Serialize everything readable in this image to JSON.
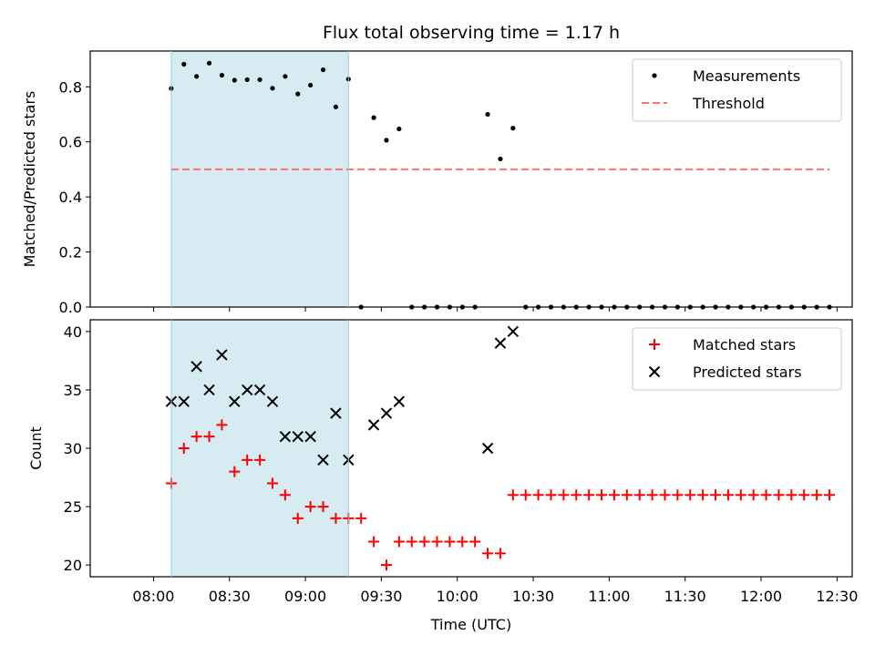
{
  "chart_data": [
    {
      "type": "scatter",
      "title": "Flux total observing time = 1.17 h",
      "xlabel": "",
      "ylabel": "Matched/Predicted stars",
      "ylim": [
        0,
        0.93
      ],
      "yticks": [
        "0.0",
        "0.2",
        "0.4",
        "0.6",
        "0.8"
      ],
      "highlight_span": {
        "start": "08:07",
        "end": "09:17",
        "color": "#add8e6"
      },
      "grid": false,
      "legend_position": "top-right",
      "series": [
        {
          "name": "Measurements",
          "kind": "points",
          "color": "#000000",
          "x": [
            "08:07",
            "08:12",
            "08:17",
            "08:22",
            "08:27",
            "08:32",
            "08:37",
            "08:42",
            "08:47",
            "08:52",
            "08:57",
            "09:02",
            "09:07",
            "09:12",
            "09:17",
            "09:22",
            "09:27",
            "09:32",
            "09:37",
            "09:42",
            "09:47",
            "09:52",
            "09:57",
            "10:02",
            "10:07",
            "10:12",
            "10:17",
            "10:22",
            "10:27",
            "10:32",
            "10:37",
            "10:42",
            "10:47",
            "10:52",
            "10:57",
            "11:02",
            "11:07",
            "11:12",
            "11:17",
            "11:22",
            "11:27",
            "11:32",
            "11:37",
            "11:42",
            "11:47",
            "11:52",
            "11:57",
            "12:02",
            "12:07",
            "12:12",
            "12:17",
            "12:22",
            "12:27"
          ],
          "y": [
            0.794,
            0.882,
            0.838,
            0.886,
            0.842,
            0.824,
            0.826,
            0.826,
            0.795,
            0.838,
            0.774,
            0.806,
            0.862,
            0.727,
            0.828,
            0.0,
            0.688,
            0.606,
            0.647,
            0.0,
            0.0,
            0.0,
            0.0,
            0.0,
            0.0,
            0.7,
            0.538,
            0.65,
            0.0,
            0.0,
            0.0,
            0.0,
            0.0,
            0.0,
            0.0,
            0.0,
            0.0,
            0.0,
            0.0,
            0.0,
            0.0,
            0.0,
            0.0,
            0.0,
            0.0,
            0.0,
            0.0,
            0.0,
            0.0,
            0.0,
            0.0,
            0.0,
            0.0
          ]
        },
        {
          "name": "Threshold",
          "kind": "dashed-line",
          "color": "#ff7070",
          "x": [
            "08:07",
            "12:27"
          ],
          "y": [
            0.5,
            0.5
          ]
        }
      ]
    },
    {
      "type": "scatter",
      "title": "",
      "xlabel": "Time (UTC)",
      "ylabel": "Count",
      "ylim": [
        19,
        41
      ],
      "yticks": [
        "20",
        "25",
        "30",
        "35",
        "40"
      ],
      "xticks": [
        "08:00",
        "08:30",
        "09:00",
        "09:30",
        "10:00",
        "10:30",
        "11:00",
        "11:30",
        "12:00",
        "12:30"
      ],
      "highlight_span": {
        "start": "08:07",
        "end": "09:17",
        "color": "#add8e6"
      },
      "grid": false,
      "legend_position": "top-right",
      "series": [
        {
          "name": "Matched stars",
          "kind": "plus",
          "color": "#ff0000",
          "x": [
            "08:07",
            "08:12",
            "08:17",
            "08:22",
            "08:27",
            "08:32",
            "08:37",
            "08:42",
            "08:47",
            "08:52",
            "08:57",
            "09:02",
            "09:07",
            "09:12",
            "09:17",
            "09:22",
            "09:27",
            "09:32",
            "09:37",
            "09:42",
            "09:47",
            "09:52",
            "09:57",
            "10:02",
            "10:07",
            "10:12",
            "10:17",
            "10:22",
            "10:27",
            "10:32",
            "10:37",
            "10:42",
            "10:47",
            "10:52",
            "10:57",
            "11:02",
            "11:07",
            "11:12",
            "11:17",
            "11:22",
            "11:27",
            "11:32",
            "11:37",
            "11:42",
            "11:47",
            "11:52",
            "11:57",
            "12:02",
            "12:07",
            "12:12",
            "12:17",
            "12:22",
            "12:27"
          ],
          "y": [
            27,
            30,
            31,
            31,
            32,
            28,
            29,
            29,
            27,
            26,
            24,
            25,
            25,
            24,
            24,
            24,
            22,
            20,
            22,
            22,
            22,
            22,
            22,
            22,
            22,
            21,
            21,
            26,
            26,
            26,
            26,
            26,
            26,
            26,
            26,
            26,
            26,
            26,
            26,
            26,
            26,
            26,
            26,
            26,
            26,
            26,
            26,
            26,
            26,
            26,
            26,
            26,
            26
          ]
        },
        {
          "name": "Predicted stars",
          "kind": "cross",
          "color": "#000000",
          "x": [
            "08:07",
            "08:12",
            "08:17",
            "08:22",
            "08:27",
            "08:32",
            "08:37",
            "08:42",
            "08:47",
            "08:52",
            "08:57",
            "09:02",
            "09:07",
            "09:12",
            "09:17",
            "09:27",
            "09:32",
            "09:37",
            "10:12",
            "10:17",
            "10:22"
          ],
          "y": [
            34,
            34,
            37,
            35,
            38,
            34,
            35,
            35,
            34,
            31,
            31,
            31,
            29,
            33,
            29,
            32,
            33,
            34,
            30,
            39,
            40
          ]
        }
      ]
    }
  ]
}
